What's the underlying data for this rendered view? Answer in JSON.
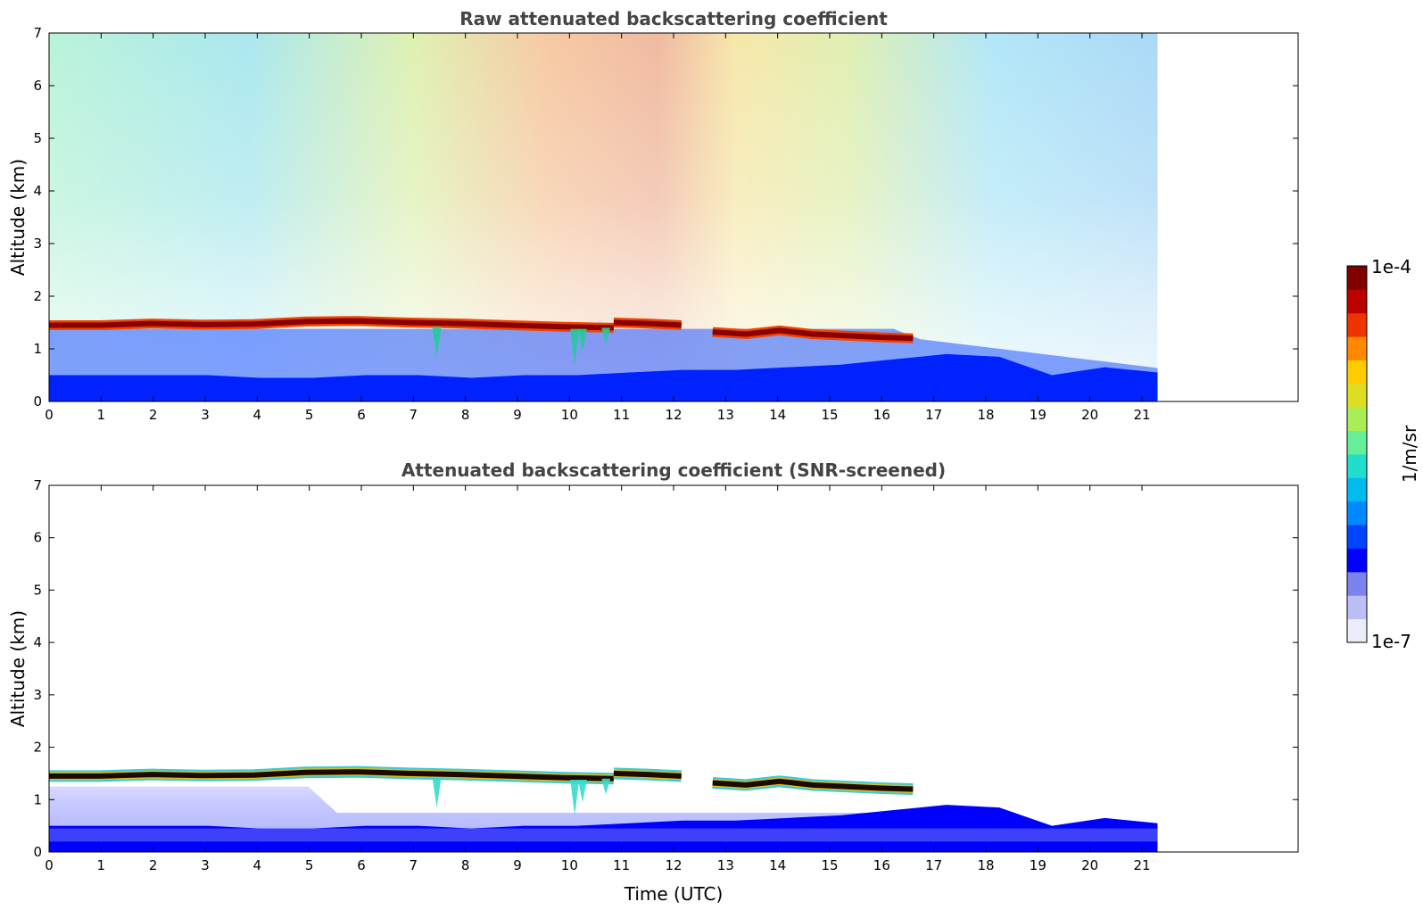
{
  "chart_data": [
    {
      "type": "heatmap",
      "id": "raw",
      "title": "Raw attenuated backscattering coefficient",
      "xlabel": "",
      "ylabel": "Altitude (km)",
      "xlim": [
        0,
        24
      ],
      "ylim": [
        0,
        7
      ],
      "x_ticks": [
        0,
        1,
        2,
        3,
        4,
        5,
        6,
        7,
        8,
        9,
        10,
        11,
        12,
        13,
        14,
        15,
        16,
        17,
        18,
        19,
        20,
        21
      ],
      "x_tick_labels": [
        "0",
        "1",
        "2",
        "3",
        "4",
        "5",
        "6",
        "7",
        "8",
        "9",
        "10",
        "11",
        "12",
        "13",
        "14",
        "15",
        "16",
        "17",
        "18",
        "19",
        "20",
        "21"
      ],
      "y_ticks": [
        0,
        1,
        2,
        3,
        4,
        5,
        6,
        7
      ],
      "y_tick_labels": [
        "0",
        "1",
        "2",
        "3",
        "4",
        "5",
        "6",
        "7"
      ],
      "data_time_range_utc": [
        0,
        21.3
      ],
      "cloud_layer": [
        {
          "start": 0,
          "end": 10.85,
          "altitude_km": [
            1.45,
            1.45,
            1.48,
            1.46,
            1.47,
            1.52,
            1.53,
            1.5,
            1.48,
            1.45,
            1.42,
            1.4
          ]
        },
        {
          "start": 10.85,
          "end": 12.15,
          "altitude_km": [
            1.5,
            1.48,
            1.45
          ]
        },
        {
          "start": 12.75,
          "end": 16.6,
          "altitude_km": [
            1.32,
            1.28,
            1.35,
            1.28,
            1.25,
            1.22,
            1.2
          ]
        }
      ]
    },
    {
      "type": "heatmap",
      "id": "screened",
      "title": "Attenuated backscattering coefficient (SNR-screened)",
      "xlabel": "Time (UTC)",
      "ylabel": "Altitude (km)",
      "xlim": [
        0,
        24
      ],
      "ylim": [
        0,
        7
      ],
      "x_ticks": [
        0,
        1,
        2,
        3,
        4,
        5,
        6,
        7,
        8,
        9,
        10,
        11,
        12,
        13,
        14,
        15,
        16,
        17,
        18,
        19,
        20,
        21
      ],
      "x_tick_labels": [
        "0",
        "1",
        "2",
        "3",
        "4",
        "5",
        "6",
        "7",
        "8",
        "9",
        "10",
        "11",
        "12",
        "13",
        "14",
        "15",
        "16",
        "17",
        "18",
        "19",
        "20",
        "21"
      ],
      "y_ticks": [
        0,
        1,
        2,
        3,
        4,
        5,
        6,
        7
      ],
      "y_tick_labels": [
        "0",
        "1",
        "2",
        "3",
        "4",
        "5",
        "6",
        "7"
      ],
      "data_time_range_utc": [
        0,
        21.3
      ],
      "boundary_layer_top_km": [
        0.5,
        0.5,
        0.5,
        0.5,
        0.45,
        0.45,
        0.5,
        0.5,
        0.45,
        0.5,
        0.5,
        0.55,
        0.6,
        0.6,
        0.65,
        0.7,
        0.8,
        0.9,
        0.85,
        0.5,
        0.65,
        0.55
      ]
    }
  ],
  "colorbar": {
    "label": "1/m/sr",
    "max_label": "1e-4",
    "min_label": "1e-7",
    "scale": "log",
    "range": [
      1e-07,
      0.0001
    ],
    "colors": [
      "#ecedfb",
      "#bcbff5",
      "#7c82ee",
      "#0000ff",
      "#0044ff",
      "#0088ff",
      "#00bbee",
      "#22ddcc",
      "#66ee99",
      "#aaee55",
      "#dddd22",
      "#ffcc00",
      "#ff8800",
      "#ee3300",
      "#bb0000",
      "#800000"
    ]
  }
}
